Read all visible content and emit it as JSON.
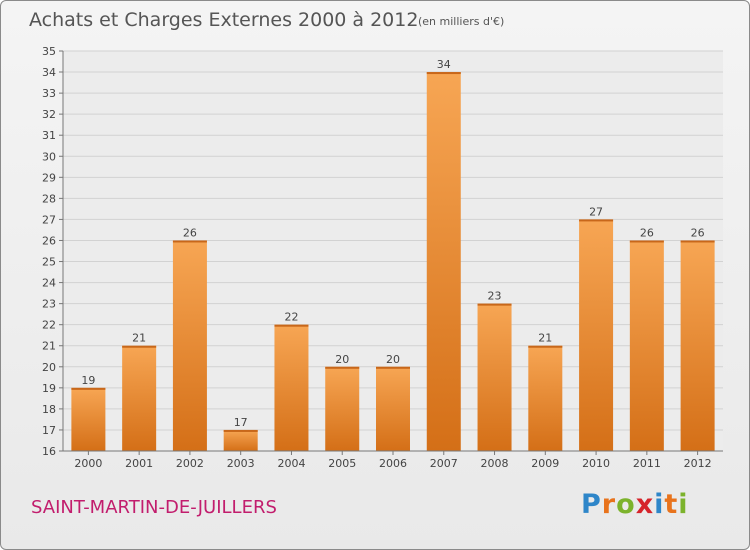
{
  "chart_data": {
    "type": "bar",
    "title": "Achats et Charges Externes 2000 à 2012",
    "subtitle": "(en milliers d'€)",
    "categories": [
      "2000",
      "2001",
      "2002",
      "2003",
      "2004",
      "2005",
      "2006",
      "2007",
      "2008",
      "2009",
      "2010",
      "2011",
      "2012"
    ],
    "values": [
      19,
      21,
      26,
      17,
      22,
      20,
      20,
      34,
      23,
      21,
      27,
      26,
      26
    ],
    "ylim": [
      16,
      35
    ],
    "yticks": [
      16,
      17,
      18,
      19,
      20,
      21,
      22,
      23,
      24,
      25,
      26,
      27,
      28,
      29,
      30,
      31,
      32,
      33,
      34,
      35
    ],
    "grid": true,
    "bar_color_light": "#f7a654",
    "bar_color_dark": "#d46f17"
  },
  "place_name": "SAINT-MARTIN-DE-JUILLERS",
  "logo": {
    "text": "Proxiti",
    "letters": [
      {
        "ch": "P",
        "color": "#2e86c9"
      },
      {
        "ch": "r",
        "color": "#e8731c"
      },
      {
        "ch": "o",
        "color": "#7cb32c"
      },
      {
        "ch": "x",
        "color": "#d6242b"
      },
      {
        "ch": "i",
        "color": "#2e86c9"
      },
      {
        "ch": "t",
        "color": "#e8731c"
      },
      {
        "ch": "i",
        "color": "#7cb32c"
      }
    ]
  }
}
